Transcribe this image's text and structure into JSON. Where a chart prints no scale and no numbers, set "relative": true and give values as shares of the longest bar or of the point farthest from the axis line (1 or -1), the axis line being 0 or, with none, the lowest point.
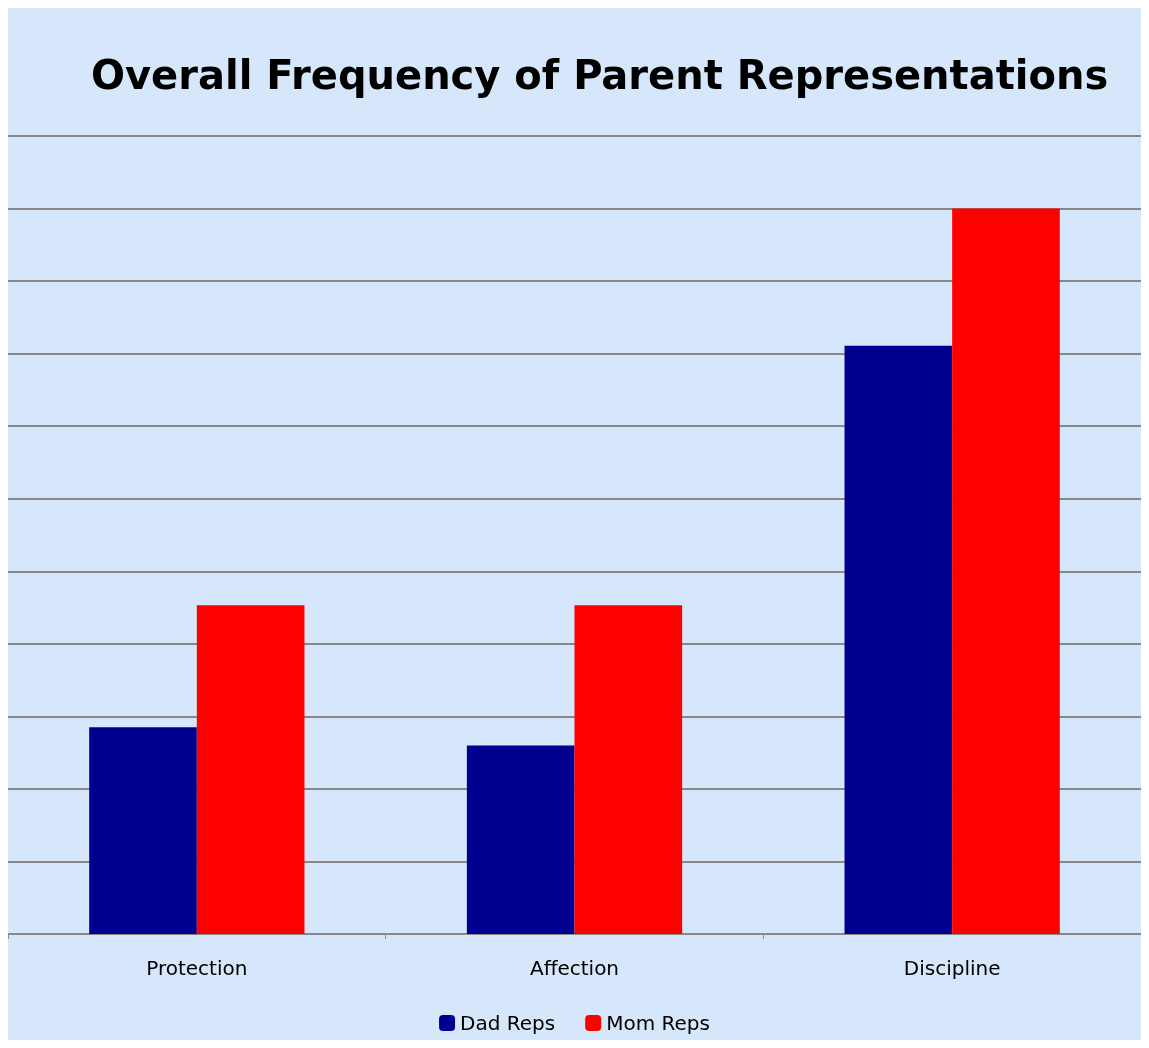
{
  "chart_data": {
    "type": "bar",
    "title": "Overall Frequency of Parent Representations",
    "categories": [
      "Protection",
      "Affection",
      "Discipline"
    ],
    "series": [
      {
        "name": "Dad Reps",
        "color": "#000090",
        "values": [
          0.285,
          0.26,
          0.811
        ]
      },
      {
        "name": "Mom Reps",
        "color": "#ff0000",
        "values": [
          0.453,
          0.453,
          1
        ]
      }
    ],
    "relative": true,
    "grid": "y",
    "legend": "bottom"
  }
}
